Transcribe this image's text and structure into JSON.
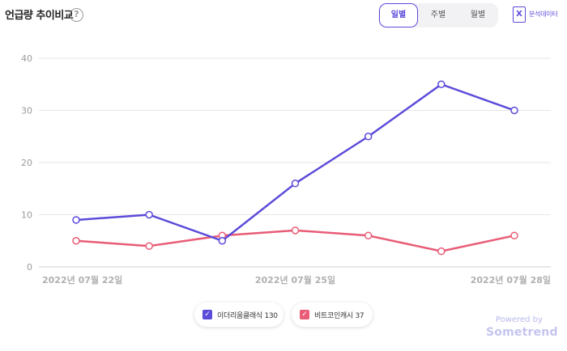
{
  "header": {
    "title": "언급량 추이비교",
    "help_icon": "?",
    "period_tabs": [
      "일별",
      "주별",
      "월별"
    ],
    "active_tab": "일별",
    "export_label": "분석데이터",
    "export_icon": "X"
  },
  "chart_data": {
    "type": "line",
    "x": [
      "2022-07-22",
      "2022-07-23",
      "2022-07-24",
      "2022-07-25",
      "2022-07-26",
      "2022-07-27",
      "2022-07-28"
    ],
    "x_tick_labels": [
      "2022년 07월 22일",
      "2022년 07월 25일",
      "2022년 07월 28일"
    ],
    "y_ticks": [
      0,
      10,
      20,
      30,
      40
    ],
    "ylim": [
      0,
      40
    ],
    "grid": true,
    "series": [
      {
        "name": "이더리움클래식",
        "values": [
          9,
          10,
          5,
          16,
          25,
          35,
          30
        ],
        "color": "#5b4bd9"
      },
      {
        "name": "비트코인캐시",
        "values": [
          5,
          4,
          6,
          7,
          6,
          3,
          6
        ],
        "color": "#e85c76"
      }
    ]
  },
  "legend": [
    {
      "label": "이더리움클래식",
      "count": "130",
      "color": "#5b4bd9"
    },
    {
      "label": "비트코인캐시",
      "count": "37",
      "color": "#e85c76"
    }
  ],
  "footer": {
    "powered_by": "Powered by",
    "brand": "Sometrend"
  }
}
